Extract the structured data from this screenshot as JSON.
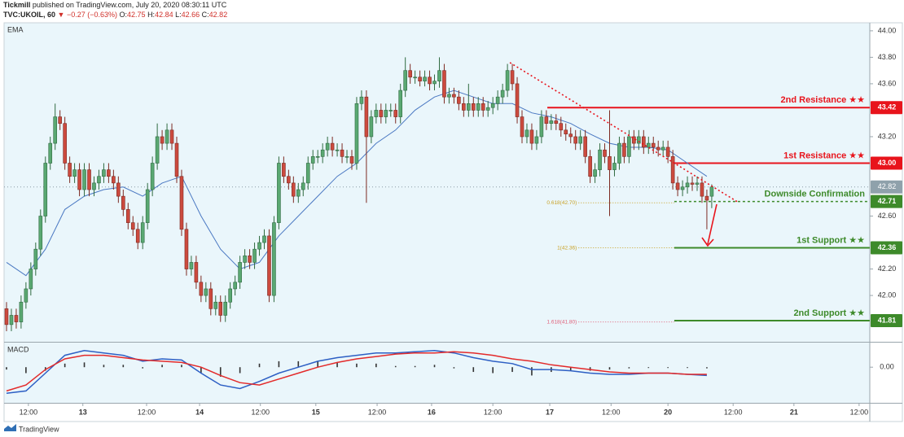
{
  "header": {
    "publisher": "Tickmill",
    "published": "published on TradingView.com, July 20, 2020 08:30:11 UTC",
    "symbol": "TVC:UKOIL, 60",
    "change": "▼ −0.27 (−0.63%)",
    "open_label": "O:",
    "high_label": "H:",
    "low_label": "L:",
    "close_label": "C:"
  },
  "footer": {
    "brand": "TradingView"
  },
  "chart_data": {
    "type": "candlestick",
    "xlim": [
      -0.5,
      177.5
    ],
    "ylim": [
      41.65,
      44.03
    ],
    "colors": {
      "up": "#5aa872",
      "down": "#cc4a3e",
      "up_edge": "#2f6a40",
      "down_edge": "#7d2a22",
      "ema": "#4a78c2",
      "price_line": "#8a9aa4"
    },
    "xticks": [
      {
        "value": 4.5,
        "label": "12:00"
      },
      {
        "value": 15.7,
        "label": "13"
      },
      {
        "value": 28.8,
        "label": "12:00"
      },
      {
        "value": 39.7,
        "label": "14"
      },
      {
        "value": 52.2,
        "label": "12:00"
      },
      {
        "value": 63.6,
        "label": "15"
      },
      {
        "value": 76.2,
        "label": "12:00"
      },
      {
        "value": 87.4,
        "label": "16"
      },
      {
        "value": 100,
        "label": "12:00"
      },
      {
        "value": 111.7,
        "label": "17"
      },
      {
        "value": 124.3,
        "label": "12:00"
      },
      {
        "value": 136,
        "label": "20"
      },
      {
        "value": 149.4,
        "label": "12:00"
      },
      {
        "value": 161.9,
        "label": "21"
      },
      {
        "value": 175.3,
        "label": "12:00"
      }
    ],
    "yticks": [
      {
        "value": 44,
        "label": "44.00"
      },
      {
        "value": 43.8,
        "label": "43.80"
      },
      {
        "value": 43.6,
        "label": "43.60"
      },
      {
        "value": 43.2,
        "label": "43.20"
      },
      {
        "value": 42.6,
        "label": "42.60"
      },
      {
        "value": 42.2,
        "label": "42.20"
      },
      {
        "value": 42,
        "label": "42.00"
      }
    ],
    "candles": [
      [
        41.9,
        41.95,
        41.73,
        41.78
      ],
      [
        41.78,
        41.9,
        41.73,
        41.85
      ],
      [
        41.85,
        41.9,
        41.75,
        41.8
      ],
      [
        41.8,
        42.0,
        41.75,
        41.95
      ],
      [
        41.95,
        42.1,
        41.9,
        42.05
      ],
      [
        42.05,
        42.25,
        42.0,
        42.2
      ],
      [
        42.2,
        42.4,
        42.15,
        42.35
      ],
      [
        42.35,
        42.65,
        42.3,
        42.6
      ],
      [
        42.6,
        43.05,
        42.55,
        43.0
      ],
      [
        43.0,
        43.2,
        42.95,
        43.15
      ],
      [
        43.15,
        43.45,
        43.1,
        43.35
      ],
      [
        43.35,
        43.4,
        43.25,
        43.3
      ],
      [
        43.3,
        43.35,
        42.95,
        43.0
      ],
      [
        43.0,
        43.05,
        42.85,
        42.9
      ],
      [
        42.9,
        43.0,
        42.85,
        42.95
      ],
      [
        42.95,
        43.0,
        42.75,
        42.8
      ],
      [
        42.8,
        43.0,
        42.75,
        42.95
      ],
      [
        42.95,
        43.0,
        42.75,
        42.8
      ],
      [
        42.8,
        42.9,
        42.75,
        42.85
      ],
      [
        42.85,
        42.95,
        42.8,
        42.9
      ],
      [
        42.9,
        43.0,
        42.85,
        42.95
      ],
      [
        42.95,
        43.0,
        42.85,
        42.9
      ],
      [
        42.9,
        42.95,
        42.8,
        42.85
      ],
      [
        42.85,
        42.9,
        42.7,
        42.75
      ],
      [
        42.75,
        42.8,
        42.6,
        42.65
      ],
      [
        42.65,
        42.7,
        42.5,
        42.55
      ],
      [
        42.55,
        42.6,
        42.45,
        42.5
      ],
      [
        42.5,
        42.55,
        42.35,
        42.4
      ],
      [
        42.4,
        42.6,
        42.35,
        42.55
      ],
      [
        42.55,
        42.85,
        42.5,
        42.8
      ],
      [
        42.8,
        43.05,
        42.75,
        43.0
      ],
      [
        43.0,
        43.3,
        42.95,
        43.2
      ],
      [
        43.2,
        43.25,
        43.1,
        43.15
      ],
      [
        43.15,
        43.3,
        43.1,
        43.25
      ],
      [
        43.25,
        43.3,
        43.1,
        43.15
      ],
      [
        43.15,
        43.2,
        42.85,
        42.9
      ],
      [
        42.9,
        42.95,
        42.45,
        42.5
      ],
      [
        42.5,
        42.55,
        42.15,
        42.2
      ],
      [
        42.2,
        42.3,
        42.15,
        42.25
      ],
      [
        42.25,
        42.3,
        42.05,
        42.1
      ],
      [
        42.1,
        42.15,
        41.95,
        42.0
      ],
      [
        42.0,
        42.1,
        41.95,
        42.05
      ],
      [
        42.05,
        42.1,
        41.85,
        41.9
      ],
      [
        41.9,
        42.0,
        41.85,
        41.95
      ],
      [
        41.95,
        42.0,
        41.8,
        41.85
      ],
      [
        41.85,
        42.0,
        41.8,
        41.95
      ],
      [
        41.95,
        42.1,
        41.9,
        42.05
      ],
      [
        42.05,
        42.15,
        42.0,
        42.1
      ],
      [
        42.1,
        42.3,
        42.05,
        42.25
      ],
      [
        42.25,
        42.35,
        42.2,
        42.3
      ],
      [
        42.3,
        42.35,
        42.2,
        42.25
      ],
      [
        42.25,
        42.4,
        42.2,
        42.35
      ],
      [
        42.35,
        42.45,
        42.3,
        42.4
      ],
      [
        42.4,
        42.5,
        42.35,
        42.45
      ],
      [
        42.45,
        42.5,
        41.95,
        42.0
      ],
      [
        42.0,
        42.6,
        41.95,
        42.55
      ],
      [
        42.55,
        43.05,
        42.5,
        43.0
      ],
      [
        43.0,
        43.05,
        42.85,
        42.9
      ],
      [
        42.9,
        42.95,
        42.8,
        42.85
      ],
      [
        42.85,
        42.9,
        42.7,
        42.75
      ],
      [
        42.75,
        42.85,
        42.7,
        42.8
      ],
      [
        42.8,
        42.9,
        42.75,
        42.85
      ],
      [
        42.85,
        43.05,
        42.8,
        43.0
      ],
      [
        43.0,
        43.1,
        42.95,
        43.05
      ],
      [
        43.05,
        43.1,
        43.0,
        43.05
      ],
      [
        43.05,
        43.15,
        43.0,
        43.1
      ],
      [
        43.1,
        43.2,
        43.05,
        43.15
      ],
      [
        43.15,
        43.2,
        43.05,
        43.1
      ],
      [
        43.1,
        43.15,
        43.05,
        43.1
      ],
      [
        43.1,
        43.15,
        43.0,
        43.05
      ],
      [
        43.05,
        43.1,
        43.0,
        43.05
      ],
      [
        43.05,
        43.1,
        42.95,
        43.0
      ],
      [
        43.0,
        43.5,
        42.95,
        43.45
      ],
      [
        43.45,
        43.55,
        43.4,
        43.5
      ],
      [
        43.5,
        43.55,
        42.7,
        43.2
      ],
      [
        43.2,
        43.4,
        43.15,
        43.35
      ],
      [
        43.35,
        43.45,
        43.3,
        43.4
      ],
      [
        43.4,
        43.45,
        43.3,
        43.35
      ],
      [
        43.35,
        43.45,
        43.3,
        43.4
      ],
      [
        43.4,
        43.45,
        43.35,
        43.4
      ],
      [
        43.4,
        43.45,
        43.3,
        43.35
      ],
      [
        43.35,
        43.6,
        43.3,
        43.55
      ],
      [
        43.55,
        43.8,
        43.5,
        43.7
      ],
      [
        43.7,
        43.75,
        43.6,
        43.65
      ],
      [
        43.65,
        43.7,
        43.6,
        43.65
      ],
      [
        43.65,
        43.7,
        43.58,
        43.62
      ],
      [
        43.62,
        43.7,
        43.58,
        43.65
      ],
      [
        43.65,
        43.7,
        43.55,
        43.6
      ],
      [
        43.6,
        43.67,
        43.55,
        43.62
      ],
      [
        43.62,
        43.8,
        43.57,
        43.7
      ],
      [
        43.7,
        43.75,
        43.45,
        43.5
      ],
      [
        43.5,
        43.57,
        43.45,
        43.52
      ],
      [
        43.52,
        43.57,
        43.45,
        43.5
      ],
      [
        43.5,
        43.55,
        43.4,
        43.45
      ],
      [
        43.45,
        43.5,
        43.35,
        43.4
      ],
      [
        43.4,
        43.6,
        43.35,
        43.45
      ],
      [
        43.45,
        43.5,
        43.35,
        43.4
      ],
      [
        43.4,
        43.5,
        43.35,
        43.45
      ],
      [
        43.45,
        43.5,
        43.35,
        43.4
      ],
      [
        43.4,
        43.47,
        43.35,
        43.42
      ],
      [
        43.42,
        43.5,
        43.37,
        43.45
      ],
      [
        43.45,
        43.55,
        43.4,
        43.5
      ],
      [
        43.5,
        43.6,
        43.45,
        43.55
      ],
      [
        43.55,
        43.75,
        43.5,
        43.7
      ],
      [
        43.7,
        43.75,
        43.55,
        43.6
      ],
      [
        43.6,
        43.65,
        43.3,
        43.35
      ],
      [
        43.35,
        43.4,
        43.15,
        43.2
      ],
      [
        43.2,
        43.3,
        43.15,
        43.25
      ],
      [
        43.25,
        43.3,
        43.1,
        43.15
      ],
      [
        43.15,
        43.25,
        43.1,
        43.2
      ],
      [
        43.2,
        43.4,
        43.15,
        43.35
      ],
      [
        43.35,
        43.4,
        43.25,
        43.3
      ],
      [
        43.3,
        43.37,
        43.25,
        43.32
      ],
      [
        43.32,
        43.37,
        43.25,
        43.3
      ],
      [
        43.3,
        43.35,
        43.2,
        43.25
      ],
      [
        43.25,
        43.3,
        43.17,
        43.22
      ],
      [
        43.22,
        43.27,
        43.15,
        43.2
      ],
      [
        43.2,
        43.25,
        43.1,
        43.15
      ],
      [
        43.15,
        43.25,
        43.1,
        43.2
      ],
      [
        43.2,
        43.25,
        43.0,
        43.05
      ],
      [
        43.05,
        43.1,
        42.85,
        42.9
      ],
      [
        42.9,
        43.0,
        42.85,
        42.95
      ],
      [
        42.95,
        43.15,
        42.9,
        43.1
      ],
      [
        43.1,
        43.15,
        43.0,
        43.05
      ],
      [
        43.05,
        43.4,
        42.6,
        42.95
      ],
      [
        42.95,
        43.05,
        42.9,
        43.0
      ],
      [
        43.0,
        43.2,
        42.95,
        43.15
      ],
      [
        43.15,
        43.2,
        43.0,
        43.05
      ],
      [
        43.05,
        43.25,
        43.0,
        43.2
      ],
      [
        43.2,
        43.25,
        43.1,
        43.15
      ],
      [
        43.15,
        43.25,
        43.1,
        43.2
      ],
      [
        43.2,
        43.25,
        43.07,
        43.12
      ],
      [
        43.12,
        43.2,
        43.07,
        43.15
      ],
      [
        43.15,
        43.2,
        43.07,
        43.12
      ],
      [
        43.12,
        43.17,
        43.05,
        43.1
      ],
      [
        43.1,
        43.17,
        43.05,
        43.12
      ],
      [
        43.12,
        43.17,
        43.0,
        43.05
      ],
      [
        43.05,
        43.1,
        42.8,
        42.85
      ],
      [
        42.85,
        42.9,
        42.75,
        42.8
      ],
      [
        42.8,
        42.87,
        42.75,
        42.82
      ],
      [
        42.82,
        42.9,
        42.77,
        42.85
      ],
      [
        42.85,
        42.9,
        42.79,
        42.84
      ],
      [
        42.84,
        42.9,
        42.79,
        42.85
      ],
      [
        42.85,
        42.9,
        42.7,
        42.75
      ],
      [
        42.75,
        42.8,
        42.5,
        42.72
      ],
      [
        42.75,
        42.84,
        42.66,
        42.82
      ]
    ],
    "ema": {
      "name": "EMA",
      "x": [
        0,
        4,
        8,
        12,
        16,
        20,
        24,
        28,
        32,
        36,
        40,
        44,
        48,
        52,
        56,
        60,
        64,
        68,
        72,
        76,
        80,
        84,
        88,
        92,
        96,
        100,
        104,
        108,
        112,
        116,
        120,
        124,
        128,
        132,
        136,
        140,
        144
      ],
      "values": [
        42.25,
        42.15,
        42.35,
        42.65,
        42.75,
        42.8,
        42.82,
        42.75,
        42.85,
        42.9,
        42.6,
        42.35,
        42.2,
        42.25,
        42.45,
        42.6,
        42.75,
        42.9,
        43.0,
        43.15,
        43.25,
        43.4,
        43.5,
        43.55,
        43.5,
        43.45,
        43.45,
        43.38,
        43.35,
        43.3,
        43.22,
        43.15,
        43.12,
        43.12,
        43.1,
        43.0,
        42.9
      ]
    },
    "macd": {
      "name": "MACD",
      "ylim": [
        -0.3,
        0.2
      ],
      "yticks": [
        {
          "value": 0,
          "label": "0.00"
        }
      ],
      "colors": {
        "macd": "#2d5fc4",
        "signal": "#e32a2a",
        "histogram": "#333333"
      },
      "x": [
        0,
        4,
        8,
        12,
        16,
        20,
        24,
        28,
        32,
        36,
        40,
        44,
        48,
        52,
        56,
        60,
        64,
        68,
        72,
        76,
        80,
        84,
        88,
        92,
        96,
        100,
        104,
        108,
        112,
        116,
        120,
        124,
        128,
        132,
        136,
        140,
        144
      ],
      "macd": [
        -0.22,
        -0.2,
        -0.05,
        0.1,
        0.14,
        0.12,
        0.1,
        0.05,
        0.07,
        0.06,
        -0.05,
        -0.15,
        -0.18,
        -0.12,
        -0.05,
        0.0,
        0.05,
        0.08,
        0.1,
        0.12,
        0.12,
        0.13,
        0.14,
        0.12,
        0.08,
        0.05,
        0.03,
        -0.02,
        -0.02,
        -0.03,
        -0.05,
        -0.06,
        -0.06,
        -0.05,
        -0.05,
        -0.06,
        -0.07
      ],
      "signal": [
        -0.2,
        -0.15,
        -0.02,
        0.07,
        0.1,
        0.1,
        0.08,
        0.06,
        0.05,
        0.04,
        0.0,
        -0.07,
        -0.13,
        -0.15,
        -0.1,
        -0.05,
        0.0,
        0.04,
        0.07,
        0.09,
        0.11,
        0.12,
        0.12,
        0.13,
        0.12,
        0.1,
        0.07,
        0.05,
        0.02,
        0.0,
        -0.02,
        -0.04,
        -0.05,
        -0.05,
        -0.05,
        -0.06,
        -0.06
      ],
      "histogram": [
        -0.02,
        -0.05,
        -0.03,
        0.03,
        0.04,
        0.02,
        0.02,
        -0.01,
        0.02,
        0.02,
        -0.05,
        -0.08,
        -0.05,
        0.03,
        0.05,
        0.05,
        0.05,
        0.04,
        0.03,
        0.03,
        0.01,
        0.01,
        0.02,
        -0.01,
        -0.04,
        -0.05,
        -0.04,
        -0.07,
        -0.04,
        -0.03,
        -0.03,
        -0.02,
        -0.01,
        0,
        0,
        0,
        -0.01
      ]
    },
    "levels": [
      {
        "name": "2nd Resistance ★★",
        "value": 43.42,
        "label": "43.42",
        "from": 111.2,
        "color": "#e8141c",
        "style": "solid"
      },
      {
        "name": "1st Resistance ★★",
        "value": 43,
        "label": "43.00",
        "from": 137.3,
        "color": "#e8141c",
        "style": "solid"
      },
      {
        "name": "Downside Confirmation",
        "value": 42.71,
        "label": "42.71",
        "from": 137.3,
        "color": "#3d8a2a",
        "style": "dashed"
      },
      {
        "name": "1st Support ★★",
        "value": 42.36,
        "label": "42.36",
        "from": 137.3,
        "color": "#3d8a2a",
        "style": "solid"
      },
      {
        "name": "2nd Support ★★",
        "value": 41.81,
        "label": "41.81",
        "from": 137.3,
        "color": "#3d8a2a",
        "style": "solid"
      }
    ],
    "fib": [
      {
        "label": "0.618(42.70)",
        "value": 42.7,
        "from": 117.6,
        "to": 137.3,
        "color": "#c9a227"
      },
      {
        "label": "1(42.36)",
        "value": 42.36,
        "from": 117.6,
        "to": 137.3,
        "color": "#c9a227"
      },
      {
        "label": "1.618(41.80)",
        "value": 41.8,
        "from": 117.6,
        "to": 137.3,
        "color": "#e0607a"
      }
    ],
    "trendline": {
      "x": [
        103.5,
        150.2
      ],
      "values": [
        43.76,
        42.71
      ],
      "color": "#e8141c"
    }
  }
}
